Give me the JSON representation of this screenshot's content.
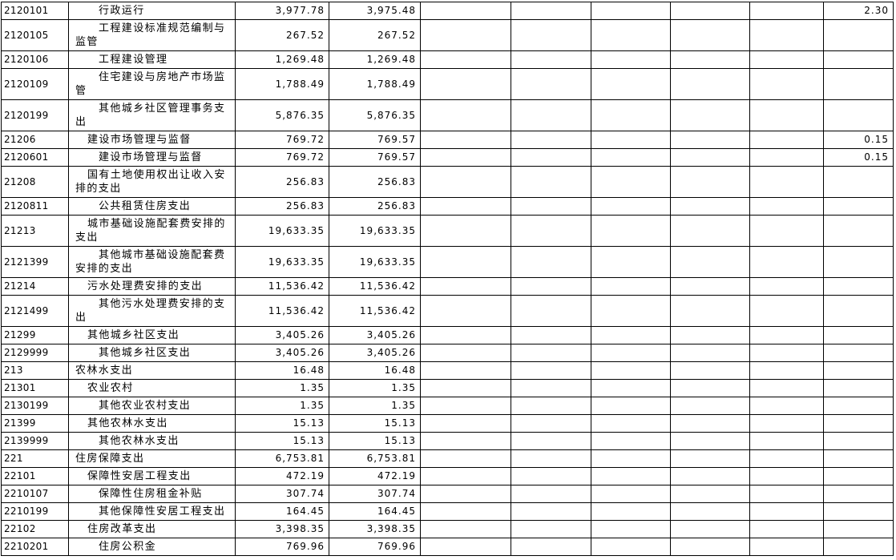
{
  "table": {
    "rows": [
      {
        "code": "2120101",
        "name": "行政运行",
        "amount": "3,977.78",
        "amount2": "3,975.48",
        "other": "2.30"
      },
      {
        "code": "2120105",
        "name": "工程建设标准规范编制与监管",
        "amount": "267.52",
        "amount2": "267.52"
      },
      {
        "code": "2120106",
        "name": "工程建设管理",
        "amount": "1,269.48",
        "amount2": "1,269.48"
      },
      {
        "code": "2120109",
        "name": "住宅建设与房地产市场监管",
        "amount": "1,788.49",
        "amount2": "1,788.49"
      },
      {
        "code": "2120199",
        "name": "其他城乡社区管理事务支出",
        "amount": "5,876.35",
        "amount2": "5,876.35"
      },
      {
        "code": "21206",
        "name": "建设市场管理与监督",
        "amount": "769.72",
        "amount2": "769.57",
        "other": "0.15"
      },
      {
        "code": "2120601",
        "name": "建设市场管理与监督",
        "amount": "769.72",
        "amount2": "769.57",
        "other": "0.15"
      },
      {
        "code": "21208",
        "name": "国有土地使用权出让收入安排的支出",
        "amount": "256.83",
        "amount2": "256.83"
      },
      {
        "code": "2120811",
        "name": "公共租赁住房支出",
        "amount": "256.83",
        "amount2": "256.83"
      },
      {
        "code": "21213",
        "name": "城市基础设施配套费安排的支出",
        "amount": "19,633.35",
        "amount2": "19,633.35"
      },
      {
        "code": "2121399",
        "name": "其他城市基础设施配套费安排的支出",
        "amount": "19,633.35",
        "amount2": "19,633.35"
      },
      {
        "code": "21214",
        "name": "污水处理费安排的支出",
        "amount": "11,536.42",
        "amount2": "11,536.42"
      },
      {
        "code": "2121499",
        "name": "其他污水处理费安排的支出",
        "amount": "11,536.42",
        "amount2": "11,536.42"
      },
      {
        "code": "21299",
        "name": "其他城乡社区支出",
        "amount": "3,405.26",
        "amount2": "3,405.26"
      },
      {
        "code": "2129999",
        "name": "其他城乡社区支出",
        "amount": "3,405.26",
        "amount2": "3,405.26"
      },
      {
        "code": "213",
        "name": "农林水支出",
        "amount": "16.48",
        "amount2": "16.48"
      },
      {
        "code": "21301",
        "name": "农业农村",
        "amount": "1.35",
        "amount2": "1.35"
      },
      {
        "code": "2130199",
        "name": "其他农业农村支出",
        "amount": "1.35",
        "amount2": "1.35"
      },
      {
        "code": "21399",
        "name": "其他农林水支出",
        "amount": "15.13",
        "amount2": "15.13"
      },
      {
        "code": "2139999",
        "name": "其他农林水支出",
        "amount": "15.13",
        "amount2": "15.13"
      },
      {
        "code": "221",
        "name": "住房保障支出",
        "amount": "6,753.81",
        "amount2": "6,753.81"
      },
      {
        "code": "22101",
        "name": "保障性安居工程支出",
        "amount": "472.19",
        "amount2": "472.19"
      },
      {
        "code": "2210107",
        "name": "保障性住房租金补贴",
        "amount": "307.74",
        "amount2": "307.74"
      },
      {
        "code": "2210199",
        "name": "其他保障性安居工程支出",
        "amount": "164.45",
        "amount2": "164.45"
      },
      {
        "code": "22102",
        "name": "住房改革支出",
        "amount": "3,398.35",
        "amount2": "3,398.35"
      },
      {
        "code": "2210201",
        "name": "住房公积金",
        "amount": "769.96",
        "amount2": "769.96"
      }
    ]
  }
}
